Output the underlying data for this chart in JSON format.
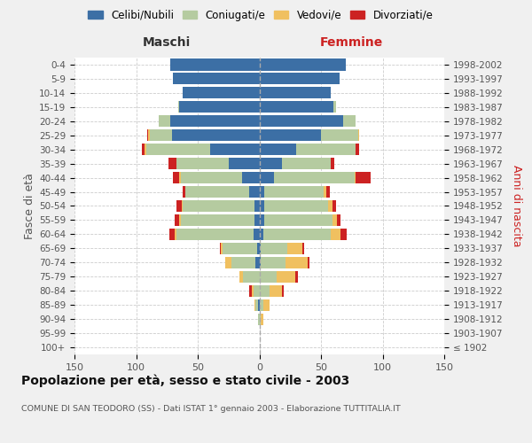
{
  "age_groups": [
    "100+",
    "95-99",
    "90-94",
    "85-89",
    "80-84",
    "75-79",
    "70-74",
    "65-69",
    "60-64",
    "55-59",
    "50-54",
    "45-49",
    "40-44",
    "35-39",
    "30-34",
    "25-29",
    "20-24",
    "15-19",
    "10-14",
    "5-9",
    "0-4"
  ],
  "birth_years": [
    "≤ 1902",
    "1903-1907",
    "1908-1912",
    "1913-1917",
    "1918-1922",
    "1923-1927",
    "1928-1932",
    "1933-1937",
    "1938-1942",
    "1943-1947",
    "1948-1952",
    "1953-1957",
    "1958-1962",
    "1963-1967",
    "1968-1972",
    "1973-1977",
    "1978-1982",
    "1983-1987",
    "1988-1992",
    "1993-1997",
    "1998-2002"
  ],
  "males": {
    "celibi": [
      0,
      0,
      0,
      1,
      0,
      0,
      3,
      2,
      5,
      4,
      4,
      8,
      14,
      25,
      40,
      71,
      72,
      65,
      62,
      70,
      72
    ],
    "coniugati": [
      0,
      0,
      1,
      2,
      5,
      13,
      20,
      28,
      62,
      60,
      58,
      52,
      50,
      42,
      52,
      18,
      10,
      1,
      0,
      0,
      0
    ],
    "vedovi": [
      0,
      0,
      0,
      1,
      1,
      3,
      5,
      1,
      2,
      1,
      1,
      0,
      1,
      0,
      1,
      1,
      0,
      0,
      0,
      0,
      0
    ],
    "divorziati": [
      0,
      0,
      0,
      0,
      2,
      0,
      0,
      1,
      4,
      4,
      4,
      2,
      5,
      7,
      2,
      1,
      0,
      0,
      0,
      0,
      0
    ]
  },
  "females": {
    "nubili": [
      0,
      0,
      0,
      0,
      0,
      0,
      1,
      1,
      3,
      4,
      4,
      4,
      12,
      18,
      30,
      50,
      68,
      60,
      58,
      65,
      70
    ],
    "coniugate": [
      0,
      0,
      1,
      3,
      8,
      14,
      20,
      22,
      55,
      55,
      52,
      48,
      65,
      40,
      48,
      30,
      10,
      2,
      0,
      0,
      0
    ],
    "vedove": [
      0,
      0,
      2,
      5,
      10,
      15,
      18,
      12,
      8,
      4,
      3,
      2,
      1,
      0,
      0,
      1,
      0,
      0,
      0,
      0,
      0
    ],
    "divorziate": [
      0,
      0,
      0,
      0,
      2,
      2,
      2,
      1,
      5,
      3,
      3,
      3,
      12,
      3,
      3,
      0,
      0,
      0,
      0,
      0,
      0
    ]
  },
  "colors": {
    "celibi": "#3c6fa5",
    "coniugati": "#b5cba0",
    "vedovi": "#f0c060",
    "divorziati": "#cc2222"
  },
  "xlim": 150,
  "title": "Popolazione per età, sesso e stato civile - 2003",
  "subtitle": "COMUNE DI SAN TEODORO (SS) - Dati ISTAT 1° gennaio 2003 - Elaborazione TUTTITALIA.IT",
  "xlabel_left": "Maschi",
  "xlabel_right": "Femmine",
  "ylabel_left": "Fasce di età",
  "ylabel_right": "Anni di nascita",
  "bg_color": "#f0f0f0",
  "plot_bg_color": "#ffffff"
}
